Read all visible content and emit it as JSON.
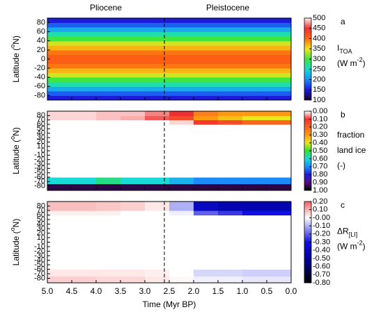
{
  "chart_data": [
    {
      "type": "heatmap",
      "panel": "a",
      "era_labels": [
        "Pliocene",
        "Pleistocene"
      ],
      "boundary": 2.6,
      "ylabel": [
        {
          "text": "Latitude ("
        },
        {
          "text": "o",
          "sup": true
        },
        {
          "text": "N)"
        }
      ],
      "xlim": [
        5,
        0
      ],
      "ylim": [
        -90,
        90
      ],
      "yticks": [
        -80,
        -60,
        -40,
        -20,
        0,
        20,
        40,
        60,
        80
      ],
      "x_bins": [
        5,
        0
      ],
      "y_bins": [
        -90,
        -80,
        -70,
        -60,
        -50,
        -40,
        -30,
        -20,
        -10,
        0,
        10,
        20,
        30,
        40,
        50,
        60,
        70,
        80,
        90
      ],
      "values": [
        [
          150
        ],
        [
          180
        ],
        [
          220
        ],
        [
          260
        ],
        [
          300
        ],
        [
          340
        ],
        [
          370
        ],
        [
          395
        ],
        [
          410
        ],
        [
          410
        ],
        [
          395
        ],
        [
          370
        ],
        [
          340
        ],
        [
          300
        ],
        [
          260
        ],
        [
          220
        ],
        [
          180
        ],
        [
          150
        ]
      ],
      "colorbar": {
        "lim": [
          100,
          500
        ],
        "ticks": [
          100,
          150,
          200,
          250,
          300,
          350,
          400,
          450,
          500
        ],
        "label_lines": [
          [
            {
              "text": "I"
            },
            {
              "text": "TOA",
              "sub": true
            }
          ],
          [
            {
              "text": "(W m"
            },
            {
              "text": "-2",
              "sup": true
            },
            {
              "text": ")"
            }
          ]
        ]
      },
      "colormap": [
        {
          "value": 100,
          "color": "#1a0030"
        },
        {
          "value": 150,
          "color": "#1b1bd8"
        },
        {
          "value": 200,
          "color": "#1a8cff"
        },
        {
          "value": 250,
          "color": "#17d9d0"
        },
        {
          "value": 300,
          "color": "#3ee63e"
        },
        {
          "value": 350,
          "color": "#f2e61a"
        },
        {
          "value": 400,
          "color": "#ff6a10"
        },
        {
          "value": 450,
          "color": "#f23030"
        },
        {
          "value": 500,
          "color": "#fff0f0"
        }
      ]
    },
    {
      "type": "heatmap",
      "panel": "b",
      "ylabel": [
        {
          "text": "Latitude ("
        },
        {
          "text": "o",
          "sup": true
        },
        {
          "text": "N)"
        }
      ],
      "xlim": [
        5,
        0
      ],
      "ylim": [
        -90,
        90
      ],
      "yticks": [
        -80,
        -70,
        -60,
        -50,
        -40,
        -30,
        -20,
        -10,
        0,
        10,
        20,
        30,
        40,
        50,
        60,
        70,
        80
      ],
      "x_bins": [
        5,
        4.5,
        4,
        3.5,
        3,
        2.5,
        2,
        1.5,
        1,
        0.5,
        0
      ],
      "y_bins": [
        -90,
        -75,
        -60,
        60,
        70,
        80,
        90
      ],
      "values": [
        [
          0.95,
          0.95,
          0.95,
          0.95,
          0.95,
          0.95,
          0.95,
          0.95,
          0.95,
          0.95
        ],
        [
          0.6,
          0.6,
          0.55,
          0.6,
          0.6,
          0.65,
          0.7,
          0.7,
          0.7,
          0.7
        ],
        [
          0,
          0,
          0,
          0,
          0,
          0,
          0,
          0,
          0,
          0
        ],
        [
          0,
          0,
          0,
          0,
          0,
          0.02,
          0.12,
          0.15,
          0.2,
          0.2
        ],
        [
          0.02,
          0.02,
          0.03,
          0.04,
          0.08,
          0.15,
          0.3,
          0.35,
          0.4,
          0.4
        ],
        [
          0.02,
          0.02,
          0.03,
          0.03,
          0.06,
          0.1,
          0.25,
          0.3,
          0.3,
          0.3
        ]
      ],
      "colorbar": {
        "lim": [
          1,
          0
        ],
        "ticks": [
          {
            "value": 0,
            "label": "0.00"
          },
          {
            "value": 0.1,
            "label": "0.10"
          },
          {
            "value": 0.2,
            "label": "0.20"
          },
          {
            "value": 0.3,
            "label": "0.30"
          },
          {
            "value": 0.4,
            "label": "0.40"
          },
          {
            "value": 0.5,
            "label": "0.50"
          },
          {
            "value": 0.6,
            "label": "0.60"
          },
          {
            "value": 0.7,
            "label": "0.70"
          },
          {
            "value": 0.8,
            "label": "0.80"
          },
          {
            "value": 0.9,
            "label": "0.90"
          },
          {
            "value": 1,
            "label": "1.00"
          }
        ],
        "label_lines": [
          [
            {
              "text": "fraction"
            }
          ],
          [
            {
              "text": "land ice"
            }
          ],
          [
            {
              "text": "(-)"
            }
          ]
        ]
      },
      "colormap": [
        {
          "value": 0,
          "color": "#ffffff"
        },
        {
          "value": 0.1,
          "color": "#f03030"
        },
        {
          "value": 0.3,
          "color": "#ff9a10"
        },
        {
          "value": 0.4,
          "color": "#e8e81a"
        },
        {
          "value": 0.5,
          "color": "#30e030"
        },
        {
          "value": 0.6,
          "color": "#18d8d8"
        },
        {
          "value": 0.7,
          "color": "#1a8cff"
        },
        {
          "value": 0.8,
          "color": "#1b1bd8"
        },
        {
          "value": 0.9,
          "color": "#5a0a8a"
        },
        {
          "value": 1,
          "color": "#000000"
        }
      ]
    },
    {
      "type": "heatmap",
      "panel": "c",
      "ylabel": [
        {
          "text": "Latitude ("
        },
        {
          "text": "o",
          "sup": true
        },
        {
          "text": "N)"
        }
      ],
      "xlabel": "Time (Myr BP)",
      "xlim": [
        5,
        0
      ],
      "ylim": [
        -90,
        90
      ],
      "xticks": [
        {
          "value": 5,
          "label": "5.0"
        },
        {
          "value": 4.5,
          "label": "4.5"
        },
        {
          "value": 4,
          "label": "4.0"
        },
        {
          "value": 3.5,
          "label": "3.5"
        },
        {
          "value": 3,
          "label": "3.0"
        },
        {
          "value": 2.5,
          "label": "2.5"
        },
        {
          "value": 2,
          "label": "2.0"
        },
        {
          "value": 1.5,
          "label": "1.5"
        },
        {
          "value": 1,
          "label": "1.0"
        },
        {
          "value": 0.5,
          "label": "0.5"
        },
        {
          "value": 0,
          "label": "0.0"
        }
      ],
      "yticks": [
        -80,
        -70,
        -60,
        -50,
        -40,
        -30,
        -20,
        -10,
        0,
        10,
        20,
        30,
        40,
        50,
        60,
        70,
        80
      ],
      "x_bins": [
        5,
        4.5,
        4,
        3.5,
        3,
        2.5,
        2,
        1.5,
        1,
        0.5,
        0
      ],
      "y_bins": [
        -90,
        -75,
        -60,
        60,
        70,
        80,
        90
      ],
      "values": [
        [
          0.06,
          0.06,
          0.05,
          0.05,
          0.03,
          0.01,
          -0.02,
          -0.02,
          -0.03,
          -0.03
        ],
        [
          0.03,
          0.03,
          0.03,
          0.03,
          0.02,
          0,
          -0.05,
          -0.05,
          -0.06,
          -0.06
        ],
        [
          0,
          0,
          0,
          0,
          0,
          0,
          0,
          0,
          0,
          0
        ],
        [
          0.02,
          0.02,
          0.02,
          0,
          0,
          -0.02,
          -0.2,
          -0.25,
          -0.3,
          -0.3
        ],
        [
          0.08,
          0.08,
          0.07,
          0.06,
          0.03,
          -0.1,
          -0.4,
          -0.45,
          -0.45,
          -0.45
        ],
        [
          0.08,
          0.08,
          0.07,
          0.06,
          0.03,
          -0.1,
          -0.4,
          -0.45,
          -0.45,
          -0.45
        ]
      ],
      "colorbar": {
        "lim": [
          -0.8,
          0.2
        ],
        "ticks": [
          {
            "value": 0.2,
            "label": "0.20"
          },
          {
            "value": 0.1,
            "label": "0.10"
          },
          {
            "value": 0,
            "label": "-0.00"
          },
          {
            "value": -0.1,
            "label": "-0.10"
          },
          {
            "value": -0.2,
            "label": "-0.20"
          },
          {
            "value": -0.3,
            "label": "-0.30"
          },
          {
            "value": -0.4,
            "label": "-0.40"
          },
          {
            "value": -0.5,
            "label": "-0.50"
          },
          {
            "value": -0.6,
            "label": "-0.60"
          },
          {
            "value": -0.7,
            "label": "-0.70"
          },
          {
            "value": -0.8,
            "label": "-0.80"
          }
        ],
        "label_lines": [
          [
            {
              "text": "ΔR"
            },
            {
              "text": "[LI]",
              "sub": true
            }
          ],
          [
            {
              "text": "(W m"
            },
            {
              "text": "-2",
              "sup": true
            },
            {
              "text": ")"
            }
          ]
        ]
      },
      "colormap": [
        {
          "value": -0.8,
          "color": "#000000"
        },
        {
          "value": -0.5,
          "color": "#0000a0"
        },
        {
          "value": -0.3,
          "color": "#1010e0"
        },
        {
          "value": 0,
          "color": "#ffffff"
        },
        {
          "value": 0.2,
          "color": "#f06060"
        }
      ]
    }
  ]
}
